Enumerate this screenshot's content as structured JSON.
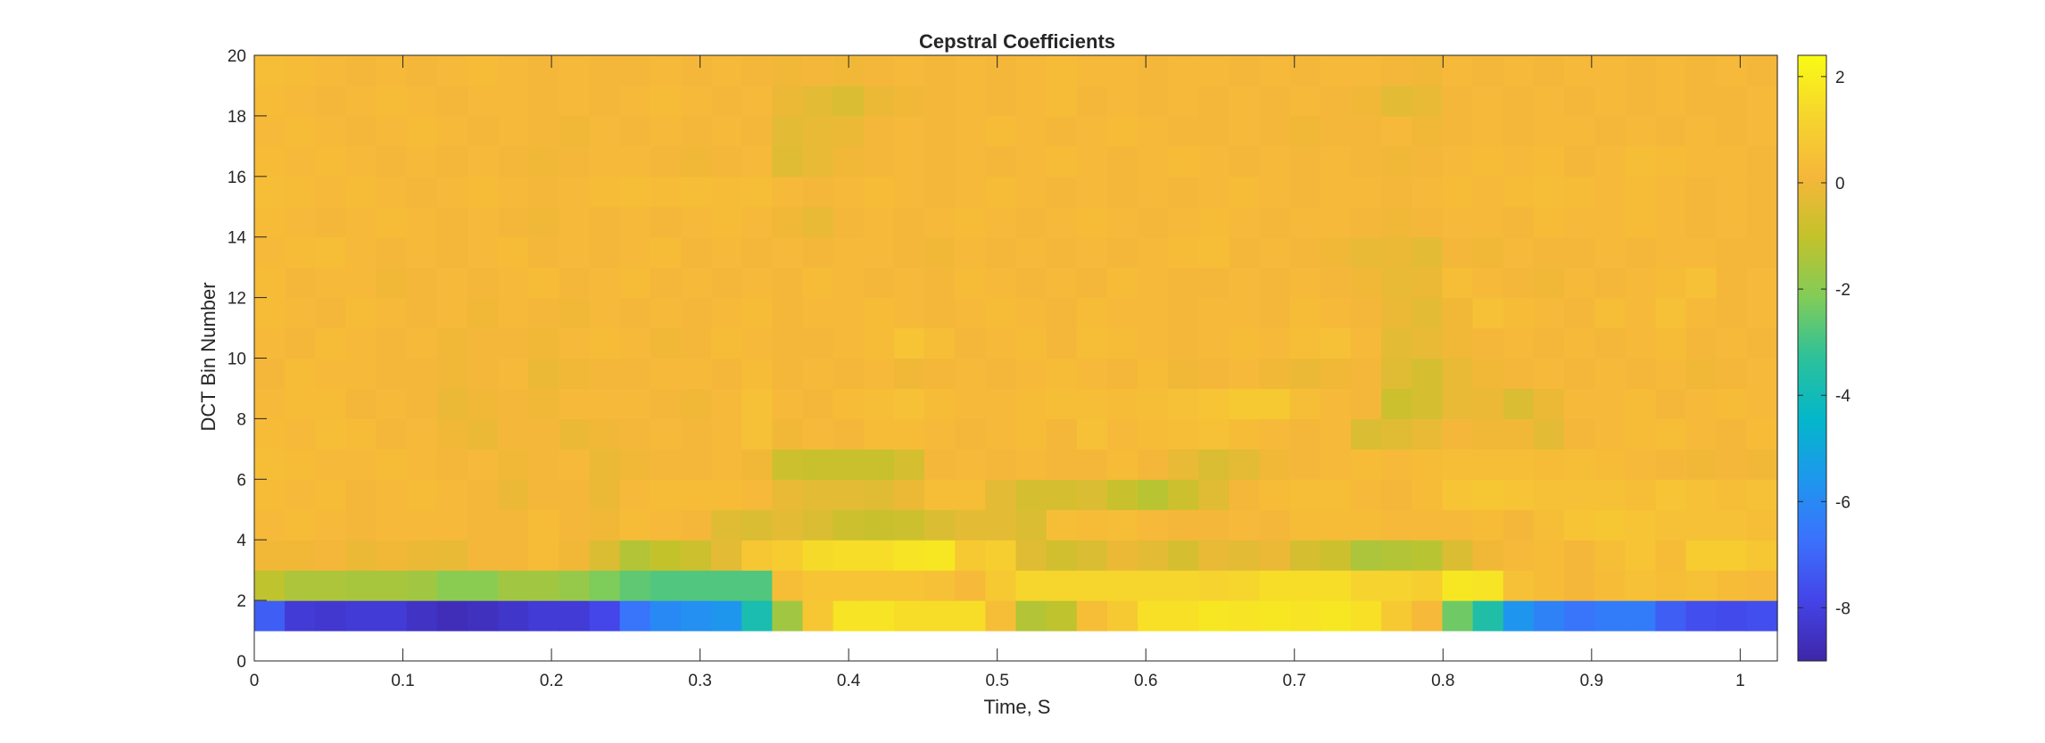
{
  "chart_data": {
    "type": "heatmap",
    "title": "Cepstral Coefficients",
    "xlabel": "Time, S",
    "ylabel": "DCT Bin Number",
    "xlim": [
      0,
      1.025
    ],
    "ylim": [
      0,
      20
    ],
    "x_ticks": [
      "0",
      "0.1",
      "0.2",
      "0.3",
      "0.4",
      "0.5",
      "0.6",
      "0.7",
      "0.8",
      "0.9",
      "1"
    ],
    "y_ticks": [
      "0",
      "2",
      "4",
      "6",
      "8",
      "10",
      "12",
      "14",
      "16",
      "18",
      "20"
    ],
    "colorbar": {
      "colormap": "parula",
      "clim": [
        -9,
        2.4
      ],
      "ticks": [
        "2",
        "0",
        "-2",
        "-4",
        "-6",
        "-8"
      ],
      "tick_values": [
        2,
        0,
        -2,
        -4,
        -6,
        -8
      ]
    },
    "cell_width_s": 0.0205,
    "first_bin": 1,
    "rows_note": "rows listed from DCT bin 1 (bottom) to DCT bin 19 (top); each row holds one coefficient per time frame",
    "values": [
      [
        -7.2,
        -8.2,
        -8.3,
        -8.2,
        -8.2,
        -8.5,
        -8.7,
        -8.6,
        -8.4,
        -8.2,
        -8.2,
        -7.8,
        -6.6,
        -6.0,
        -5.8,
        -5.6,
        -3.8,
        -1.6,
        0.7,
        1.7,
        1.7,
        1.5,
        1.5,
        1.5,
        0.4,
        -1.3,
        -1.1,
        0.4,
        0.8,
        1.6,
        1.6,
        1.8,
        1.7,
        1.8,
        1.7,
        1.8,
        1.6,
        0.8,
        0.2,
        -2.4,
        -3.6,
        -5.6,
        -6.2,
        -6.6,
        -6.4,
        -6.4,
        -7.2,
        -7.6,
        -7.7,
        -7.6,
        -7.7,
        -7.6,
        -7.6,
        -7.5,
        -7.3,
        -7.5,
        -7.2
      ],
      [
        -1.1,
        -1.4,
        -1.4,
        -1.5,
        -1.5,
        -1.6,
        -2.0,
        -2.0,
        -1.6,
        -1.6,
        -1.8,
        -2.2,
        -2.6,
        -2.8,
        -2.8,
        -2.8,
        -2.8,
        0.4,
        0.6,
        0.6,
        0.6,
        0.6,
        0.5,
        0.2,
        0.8,
        1.3,
        1.3,
        1.3,
        1.3,
        1.3,
        1.3,
        1.2,
        1.3,
        1.5,
        1.5,
        1.5,
        1.2,
        1.2,
        1.0,
        1.8,
        1.7,
        0.5,
        0.3,
        0.1,
        0.3,
        0.5,
        0.4,
        0.5,
        0.3,
        0.2,
        0.2,
        0.1,
        0.1,
        0.2,
        0.3,
        0.3,
        0.0
      ],
      [
        0.0,
        0.0,
        0.1,
        -0.1,
        0.0,
        -0.1,
        -0.2,
        0.1,
        0.1,
        0.3,
        0.0,
        -0.5,
        -1.3,
        -1.0,
        -0.8,
        -0.3,
        0.7,
        0.9,
        1.4,
        1.5,
        1.5,
        1.7,
        1.8,
        0.8,
        1.0,
        -0.4,
        -0.7,
        -0.5,
        -0.1,
        -0.3,
        -0.6,
        -0.2,
        -0.3,
        -0.1,
        -0.6,
        -0.8,
        -1.4,
        -1.3,
        -1.2,
        -0.5,
        0.0,
        0.2,
        0.3,
        0.1,
        0.4,
        0.6,
        0.3,
        0.9,
        0.9,
        0.7,
        0.6,
        0.9,
        0.9,
        0.9,
        0.8,
        0.7,
        1.0
      ],
      [
        0.2,
        0.3,
        0.2,
        0.1,
        0.2,
        0.2,
        0.2,
        0.1,
        0.1,
        0.3,
        0.1,
        0.0,
        0.3,
        0.2,
        0.1,
        -0.4,
        -0.5,
        -0.3,
        -0.5,
        -0.8,
        -0.9,
        -0.8,
        -0.5,
        -0.3,
        -0.3,
        -0.5,
        0.4,
        0.3,
        0.4,
        0.2,
        0.1,
        0.1,
        0.2,
        0.1,
        0.3,
        0.3,
        0.3,
        0.2,
        0.2,
        0.2,
        0.3,
        0.1,
        0.4,
        0.6,
        0.7,
        0.6,
        0.5,
        0.5,
        0.5,
        0.4,
        0.6,
        0.3,
        0.3,
        0.5,
        0.5,
        0.4,
        0.4
      ],
      [
        0.3,
        0.2,
        0.3,
        0.1,
        0.2,
        0.3,
        0.2,
        0.1,
        -0.1,
        0.1,
        0.1,
        -0.1,
        0.2,
        0.3,
        0.3,
        0.3,
        0.2,
        -0.2,
        -0.3,
        -0.3,
        -0.4,
        -0.1,
        0.4,
        0.4,
        -0.3,
        -0.6,
        -0.6,
        -0.5,
        -0.9,
        -1.2,
        -0.8,
        -0.4,
        0.1,
        0.3,
        0.4,
        0.4,
        0.2,
        0.1,
        0.3,
        0.6,
        0.7,
        0.6,
        0.5,
        0.5,
        0.5,
        0.4,
        0.6,
        0.5,
        0.4,
        0.5,
        0.4,
        0.3,
        0.3,
        0.4,
        0.4,
        0.4,
        0.4
      ],
      [
        0.4,
        0.3,
        0.2,
        0.2,
        0.3,
        0.2,
        0.1,
        0.2,
        0.0,
        0.1,
        0.2,
        -0.1,
        0.0,
        0.1,
        0.1,
        0.2,
        0.0,
        -0.8,
        -0.9,
        -0.9,
        -0.9,
        -0.6,
        0.1,
        0.2,
        0.1,
        0.2,
        0.1,
        0.1,
        0.3,
        0.1,
        -0.2,
        -0.5,
        -0.3,
        0.0,
        0.1,
        0.2,
        0.3,
        0.2,
        0.3,
        0.4,
        0.4,
        0.4,
        0.3,
        0.4,
        0.3,
        0.2,
        0.1,
        0.0,
        0.1,
        0.0,
        0.2,
        0.0,
        0.2,
        0.3,
        0.2,
        0.2,
        0.2
      ],
      [
        0.3,
        0.2,
        0.4,
        0.3,
        0.1,
        0.2,
        0.0,
        -0.1,
        0.1,
        0.1,
        -0.1,
        0.0,
        0.1,
        0.2,
        0.1,
        0.2,
        0.5,
        0.0,
        0.2,
        0.1,
        0.3,
        0.3,
        0.2,
        0.1,
        0.2,
        0.3,
        0.1,
        0.5,
        0.2,
        0.3,
        0.4,
        0.5,
        0.3,
        0.2,
        0.1,
        0.2,
        -0.5,
        -0.4,
        -0.2,
        0.1,
        0.0,
        0.0,
        -0.3,
        0.1,
        0.2,
        0.3,
        0.4,
        0.2,
        0.1,
        0.3,
        0.2,
        0.2,
        0.1,
        0.1,
        0.3,
        0.2,
        0.2
      ],
      [
        0.2,
        0.3,
        0.3,
        0.1,
        0.2,
        0.1,
        -0.1,
        0.0,
        0.1,
        0.0,
        0.2,
        0.2,
        0.2,
        0.1,
        0.0,
        0.2,
        0.5,
        0.2,
        0.1,
        0.3,
        0.4,
        0.5,
        0.3,
        0.2,
        0.2,
        0.3,
        0.4,
        0.4,
        0.3,
        0.4,
        0.5,
        0.6,
        0.8,
        0.8,
        0.4,
        0.2,
        0.1,
        -0.8,
        -0.6,
        -0.2,
        -0.1,
        -0.5,
        -0.1,
        0.2,
        0.2,
        0.3,
        0.1,
        0.2,
        0.3,
        0.2,
        0.1,
        0.2,
        0.1,
        0.2,
        0.3,
        0.2,
        0.2
      ],
      [
        0.1,
        0.3,
        0.2,
        0.2,
        0.1,
        0.1,
        0.0,
        0.1,
        0.2,
        -0.1,
        0.0,
        0.1,
        0.1,
        0.2,
        0.2,
        0.1,
        0.3,
        0.1,
        0.2,
        0.1,
        0.2,
        0.0,
        0.1,
        0.2,
        0.1,
        0.2,
        0.3,
        0.2,
        0.1,
        0.3,
        0.0,
        0.1,
        0.2,
        0.0,
        -0.1,
        0.0,
        0.1,
        -0.4,
        -0.6,
        -0.2,
        0.0,
        0.1,
        0.2,
        0.1,
        0.2,
        0.1,
        0.2,
        0.0,
        0.1,
        0.2,
        0.1,
        0.0,
        0.1,
        0.2,
        0.1,
        0.1,
        0.1
      ],
      [
        0.2,
        0.1,
        0.3,
        0.2,
        0.1,
        0.2,
        0.0,
        0.1,
        0.1,
        0.0,
        0.2,
        0.3,
        0.2,
        0.0,
        0.1,
        0.3,
        0.2,
        0.1,
        0.1,
        0.2,
        0.3,
        0.6,
        0.4,
        0.1,
        0.2,
        0.3,
        0.1,
        0.4,
        0.3,
        0.2,
        0.1,
        0.2,
        0.3,
        0.2,
        0.4,
        0.5,
        0.2,
        -0.3,
        -0.2,
        0.0,
        0.1,
        0.2,
        0.1,
        0.2,
        0.1,
        0.2,
        0.3,
        0.1,
        0.2,
        0.1,
        0.2,
        0.3,
        0.1,
        0.1,
        0.2,
        0.1,
        0.1
      ],
      [
        0.3,
        0.2,
        0.1,
        0.3,
        0.2,
        0.1,
        0.2,
        0.0,
        0.2,
        0.1,
        0.0,
        0.2,
        0.1,
        0.2,
        0.1,
        0.2,
        0.3,
        0.1,
        0.2,
        0.2,
        0.3,
        0.2,
        0.1,
        0.2,
        0.3,
        0.2,
        0.1,
        0.3,
        0.2,
        0.2,
        0.1,
        0.2,
        0.2,
        0.1,
        0.3,
        0.2,
        0.1,
        -0.1,
        -0.3,
        0.0,
        0.5,
        0.3,
        0.2,
        0.1,
        0.4,
        0.2,
        0.5,
        0.2,
        0.1,
        0.2,
        0.2,
        0.3,
        0.2,
        0.1,
        0.2,
        0.1,
        0.1
      ],
      [
        0.3,
        0.1,
        0.2,
        0.2,
        0.0,
        0.1,
        0.2,
        0.1,
        0.2,
        0.3,
        0.1,
        0.2,
        0.3,
        0.1,
        0.2,
        0.1,
        0.2,
        0.1,
        0.3,
        0.2,
        0.1,
        0.2,
        0.1,
        0.3,
        0.2,
        0.1,
        0.2,
        0.1,
        0.3,
        0.2,
        0.1,
        0.1,
        0.2,
        0.1,
        0.2,
        0.1,
        0.0,
        -0.2,
        -0.1,
        0.4,
        0.2,
        0.1,
        0.0,
        0.2,
        0.1,
        0.2,
        0.3,
        0.5,
        0.1,
        0.2,
        0.1,
        0.2,
        0.1,
        0.1,
        0.2,
        0.2,
        0.1
      ],
      [
        0.2,
        0.3,
        0.4,
        0.2,
        0.1,
        0.2,
        0.1,
        0.2,
        0.3,
        0.1,
        0.2,
        0.1,
        0.2,
        0.3,
        0.1,
        0.2,
        0.1,
        0.2,
        0.1,
        0.2,
        0.2,
        0.1,
        0.0,
        0.2,
        0.1,
        0.2,
        0.1,
        0.2,
        0.1,
        0.2,
        0.3,
        0.4,
        0.1,
        0.2,
        0.1,
        0.0,
        -0.2,
        -0.1,
        -0.3,
        0.1,
        0.0,
        0.2,
        0.1,
        0.1,
        0.2,
        0.1,
        0.2,
        0.2,
        0.1,
        0.1,
        0.2,
        0.1,
        0.1,
        0.2,
        0.1,
        0.1,
        0.1
      ],
      [
        0.3,
        0.2,
        0.1,
        0.2,
        0.3,
        0.2,
        0.1,
        0.2,
        0.1,
        0.0,
        0.2,
        0.1,
        0.2,
        0.1,
        0.2,
        0.3,
        0.2,
        0.0,
        -0.2,
        0.1,
        0.2,
        0.1,
        0.2,
        0.3,
        0.2,
        0.1,
        0.2,
        0.3,
        0.2,
        0.1,
        0.2,
        0.3,
        0.2,
        0.1,
        0.2,
        0.2,
        0.1,
        0.0,
        0.1,
        0.2,
        0.2,
        0.1,
        0.3,
        0.2,
        0.2,
        0.3,
        0.2,
        0.1,
        0.2,
        0.1,
        0.1,
        0.2,
        0.1,
        0.1,
        0.2,
        0.1,
        0.1
      ],
      [
        0.4,
        0.3,
        0.2,
        0.3,
        0.2,
        0.1,
        0.2,
        0.3,
        0.2,
        0.1,
        0.2,
        0.3,
        0.4,
        0.3,
        0.4,
        0.3,
        0.4,
        0.2,
        0.1,
        0.2,
        0.3,
        0.2,
        0.1,
        0.2,
        0.3,
        0.2,
        0.1,
        0.2,
        0.1,
        0.2,
        0.1,
        0.2,
        0.3,
        0.2,
        0.1,
        0.2,
        0.2,
        0.1,
        0.2,
        0.3,
        0.2,
        0.3,
        0.4,
        0.3,
        0.2,
        0.3,
        0.2,
        0.1,
        0.2,
        0.1,
        0.2,
        0.1,
        0.1,
        0.2,
        0.1,
        0.2,
        0.2
      ],
      [
        0.3,
        0.2,
        0.3,
        0.2,
        0.1,
        0.2,
        0.1,
        0.2,
        0.1,
        0.0,
        0.1,
        0.2,
        0.2,
        0.1,
        0.0,
        0.1,
        0.2,
        -0.4,
        -0.2,
        0.0,
        0.1,
        0.2,
        0.1,
        0.2,
        0.1,
        0.2,
        0.3,
        0.2,
        0.1,
        0.2,
        0.3,
        0.2,
        0.1,
        0.2,
        0.1,
        0.2,
        0.1,
        0.0,
        0.1,
        0.2,
        0.3,
        0.2,
        0.3,
        0.1,
        0.2,
        0.4,
        0.3,
        0.2,
        0.2,
        0.1,
        0.2,
        0.1,
        0.1,
        0.2,
        0.1,
        0.1,
        0.1
      ],
      [
        0.2,
        0.3,
        0.2,
        0.1,
        0.2,
        0.3,
        0.2,
        0.1,
        0.2,
        0.1,
        0.0,
        0.2,
        0.1,
        0.2,
        0.1,
        0.2,
        0.1,
        -0.3,
        -0.2,
        -0.1,
        0.1,
        0.2,
        0.1,
        0.2,
        0.3,
        0.2,
        0.1,
        0.2,
        0.3,
        0.2,
        0.1,
        0.1,
        0.2,
        0.1,
        0.0,
        0.1,
        0.1,
        0.2,
        0.0,
        0.1,
        0.2,
        0.1,
        0.2,
        0.2,
        0.1,
        0.2,
        0.1,
        0.2,
        0.1,
        0.2,
        0.1,
        0.1,
        0.2,
        0.1,
        0.1,
        0.1,
        0.1
      ],
      [
        0.3,
        0.2,
        0.1,
        0.2,
        0.3,
        0.2,
        0.1,
        0.2,
        0.2,
        0.1,
        0.2,
        0.1,
        0.2,
        0.3,
        0.2,
        0.1,
        0.2,
        -0.1,
        -0.3,
        -0.5,
        -0.1,
        0.0,
        0.1,
        0.2,
        0.1,
        0.2,
        0.3,
        0.1,
        0.2,
        0.1,
        0.2,
        0.1,
        0.2,
        0.1,
        0.2,
        0.1,
        0.0,
        -0.3,
        -0.2,
        0.1,
        0.2,
        0.1,
        0.2,
        0.1,
        0.2,
        0.1,
        0.2,
        0.1,
        0.1,
        0.2,
        0.1,
        0.1,
        0.1,
        0.2,
        0.1,
        0.1,
        0.1
      ],
      [
        0.4,
        0.3,
        0.2,
        0.1,
        0.2,
        0.1,
        0.2,
        0.3,
        0.2,
        0.1,
        0.2,
        0.1,
        0.1,
        0.2,
        0.1,
        0.2,
        0.1,
        0.0,
        0.1,
        0.0,
        0.1,
        0.2,
        0.1,
        0.2,
        0.1,
        0.2,
        0.3,
        0.2,
        0.2,
        0.1,
        0.2,
        0.2,
        0.1,
        0.2,
        0.1,
        0.2,
        0.2,
        0.1,
        0.0,
        0.2,
        0.1,
        0.2,
        0.1,
        0.2,
        0.2,
        0.1,
        0.2,
        0.1,
        0.2,
        0.1,
        0.1,
        0.1,
        0.2,
        0.1,
        0.1,
        0.1,
        0.1
      ]
    ]
  }
}
